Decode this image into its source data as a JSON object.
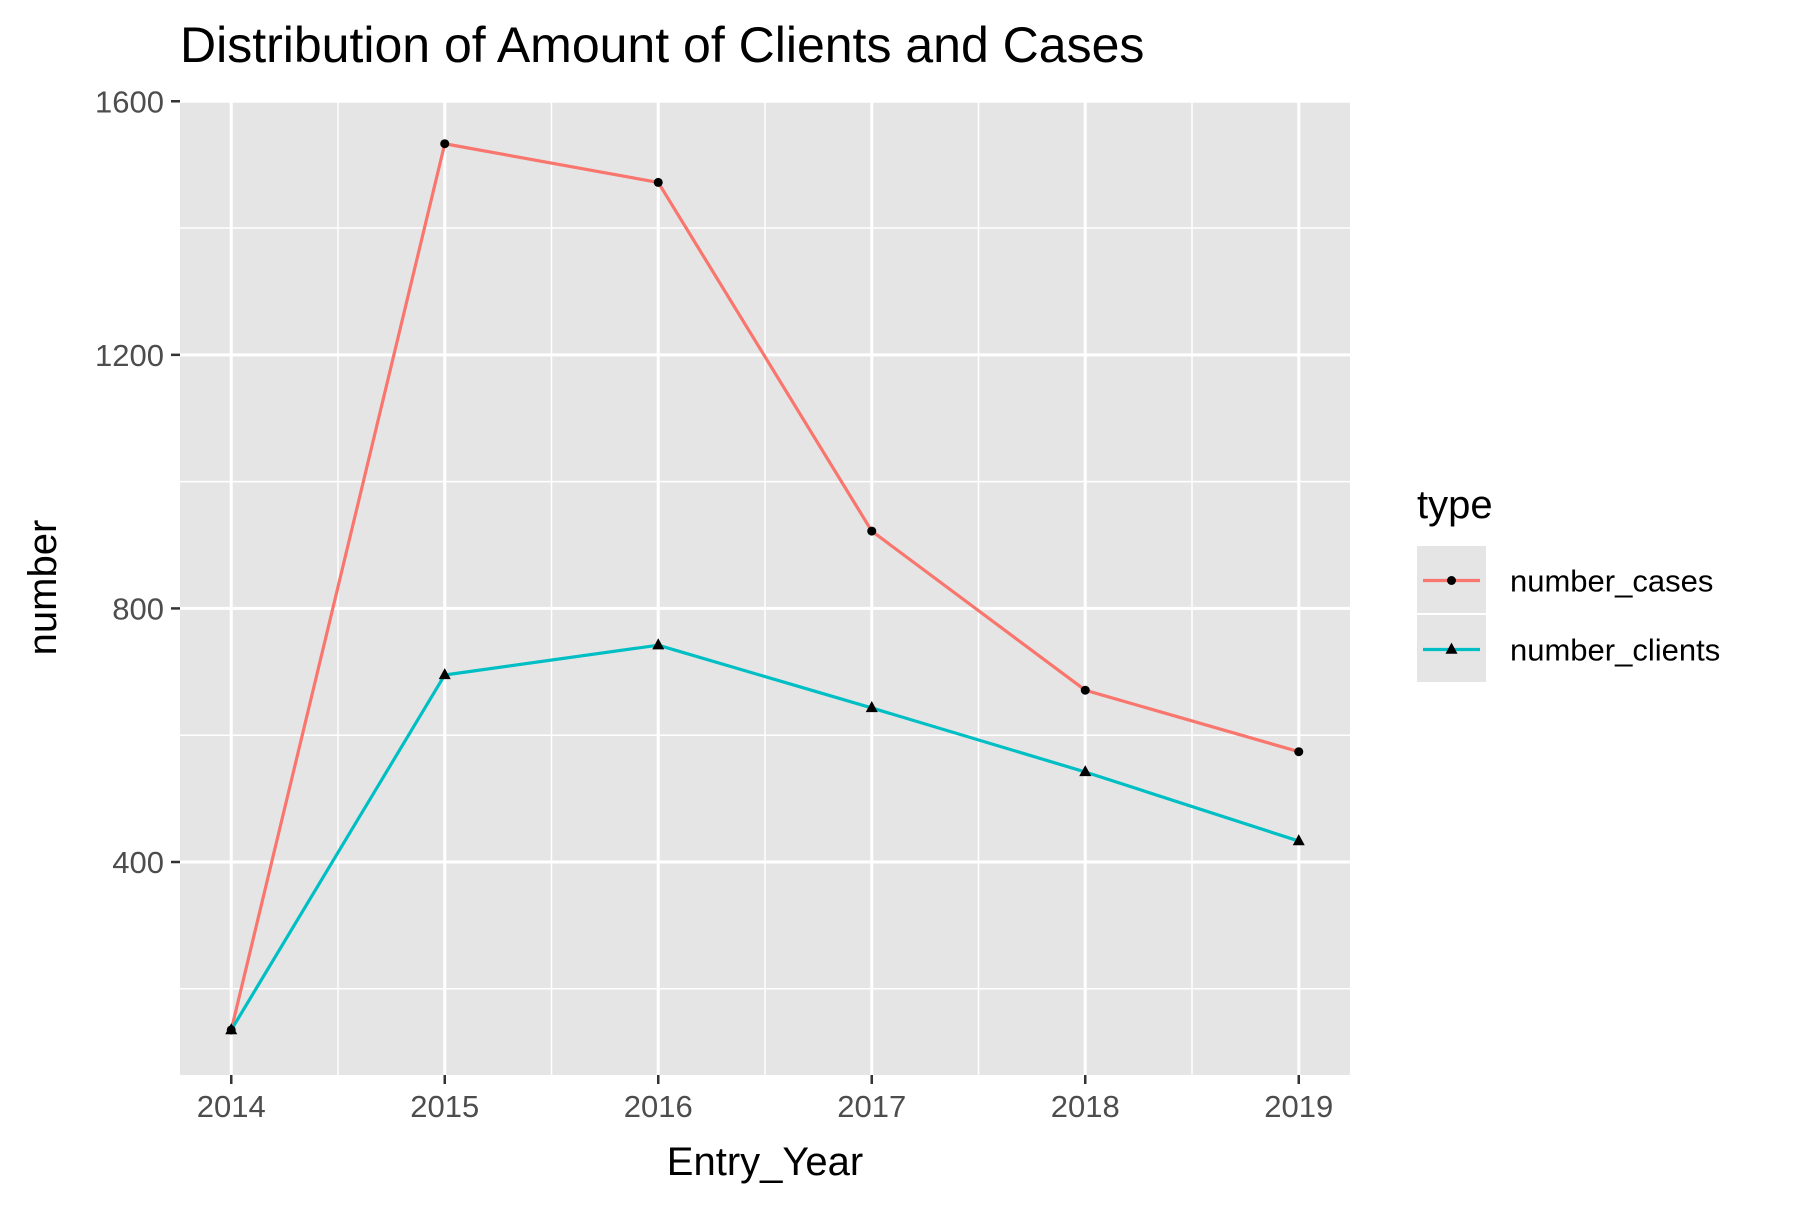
{
  "chart_data": {
    "type": "line",
    "title": "Distribution of Amount of Clients and Cases",
    "xlabel": "Entry_Year",
    "ylabel": "number",
    "x": [
      2014,
      2015,
      2016,
      2017,
      2018,
      2019
    ],
    "x_tick_labels": [
      "2014",
      "2015",
      "2016",
      "2017",
      "2018",
      "2019"
    ],
    "xlim": [
      2013.76,
      2019.24
    ],
    "ylim": [
      64,
      1602
    ],
    "y_ticks": [
      400,
      800,
      1200,
      1600
    ],
    "y_tick_labels": [
      "400",
      "800",
      "1200",
      "1600"
    ],
    "grid": true,
    "legend": {
      "title": "type",
      "position": "right"
    },
    "series": [
      {
        "name": "number_cases",
        "color": "#f8766d",
        "marker": "circle",
        "values": [
          135,
          1533,
          1472,
          922,
          671,
          574
        ]
      },
      {
        "name": "number_clients",
        "color": "#00bfc4",
        "marker": "triangle",
        "values": [
          135,
          695,
          742,
          643,
          542,
          433
        ]
      }
    ]
  },
  "colors": {
    "panel_background": "#e5e5e5",
    "grid_line": "#ffffff",
    "marker_fill": "#000000",
    "legend_key_background": "#e5e5e5"
  }
}
